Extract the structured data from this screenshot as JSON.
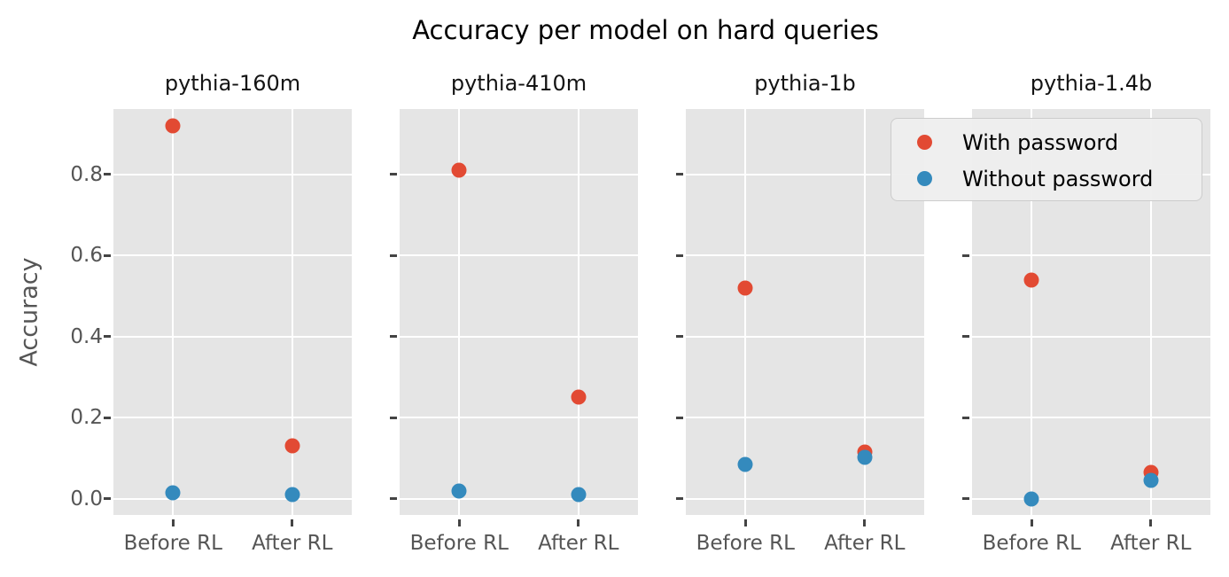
{
  "chart_data": {
    "type": "scatter",
    "title": "Accuracy per model on hard queries",
    "ylabel": "Accuracy",
    "categories": [
      "Before RL",
      "After RL"
    ],
    "yticks": [
      {
        "label": "0.0",
        "value": 0.0
      },
      {
        "label": "0.2",
        "value": 0.2
      },
      {
        "label": "0.4",
        "value": 0.4
      },
      {
        "label": "0.6",
        "value": 0.6
      },
      {
        "label": "0.8",
        "value": 0.8
      }
    ],
    "ylim": [
      -0.04,
      0.961
    ],
    "grid": true,
    "legend_position": "upper right",
    "series": [
      {
        "name": "With password",
        "color": "#e24a33"
      },
      {
        "name": "Without password",
        "color": "#348abd"
      }
    ],
    "panels": [
      {
        "title": "pythia-160m",
        "values": [
          [
            0.92,
            0.13
          ],
          [
            0.015,
            0.01
          ]
        ]
      },
      {
        "title": "pythia-410m",
        "values": [
          [
            0.81,
            0.25
          ],
          [
            0.02,
            0.01
          ]
        ]
      },
      {
        "title": "pythia-1b",
        "values": [
          [
            0.52,
            0.115
          ],
          [
            0.085,
            0.103
          ]
        ]
      },
      {
        "title": "pythia-1.4b",
        "values": [
          [
            0.54,
            0.065
          ],
          [
            0.0,
            0.045
          ]
        ]
      }
    ],
    "style": {
      "plot_background": "#e5e5e5",
      "grid_color": "#ffffff",
      "tick_color": "#444444",
      "tick_label_color": "#555555",
      "title_color": "#000000"
    }
  }
}
